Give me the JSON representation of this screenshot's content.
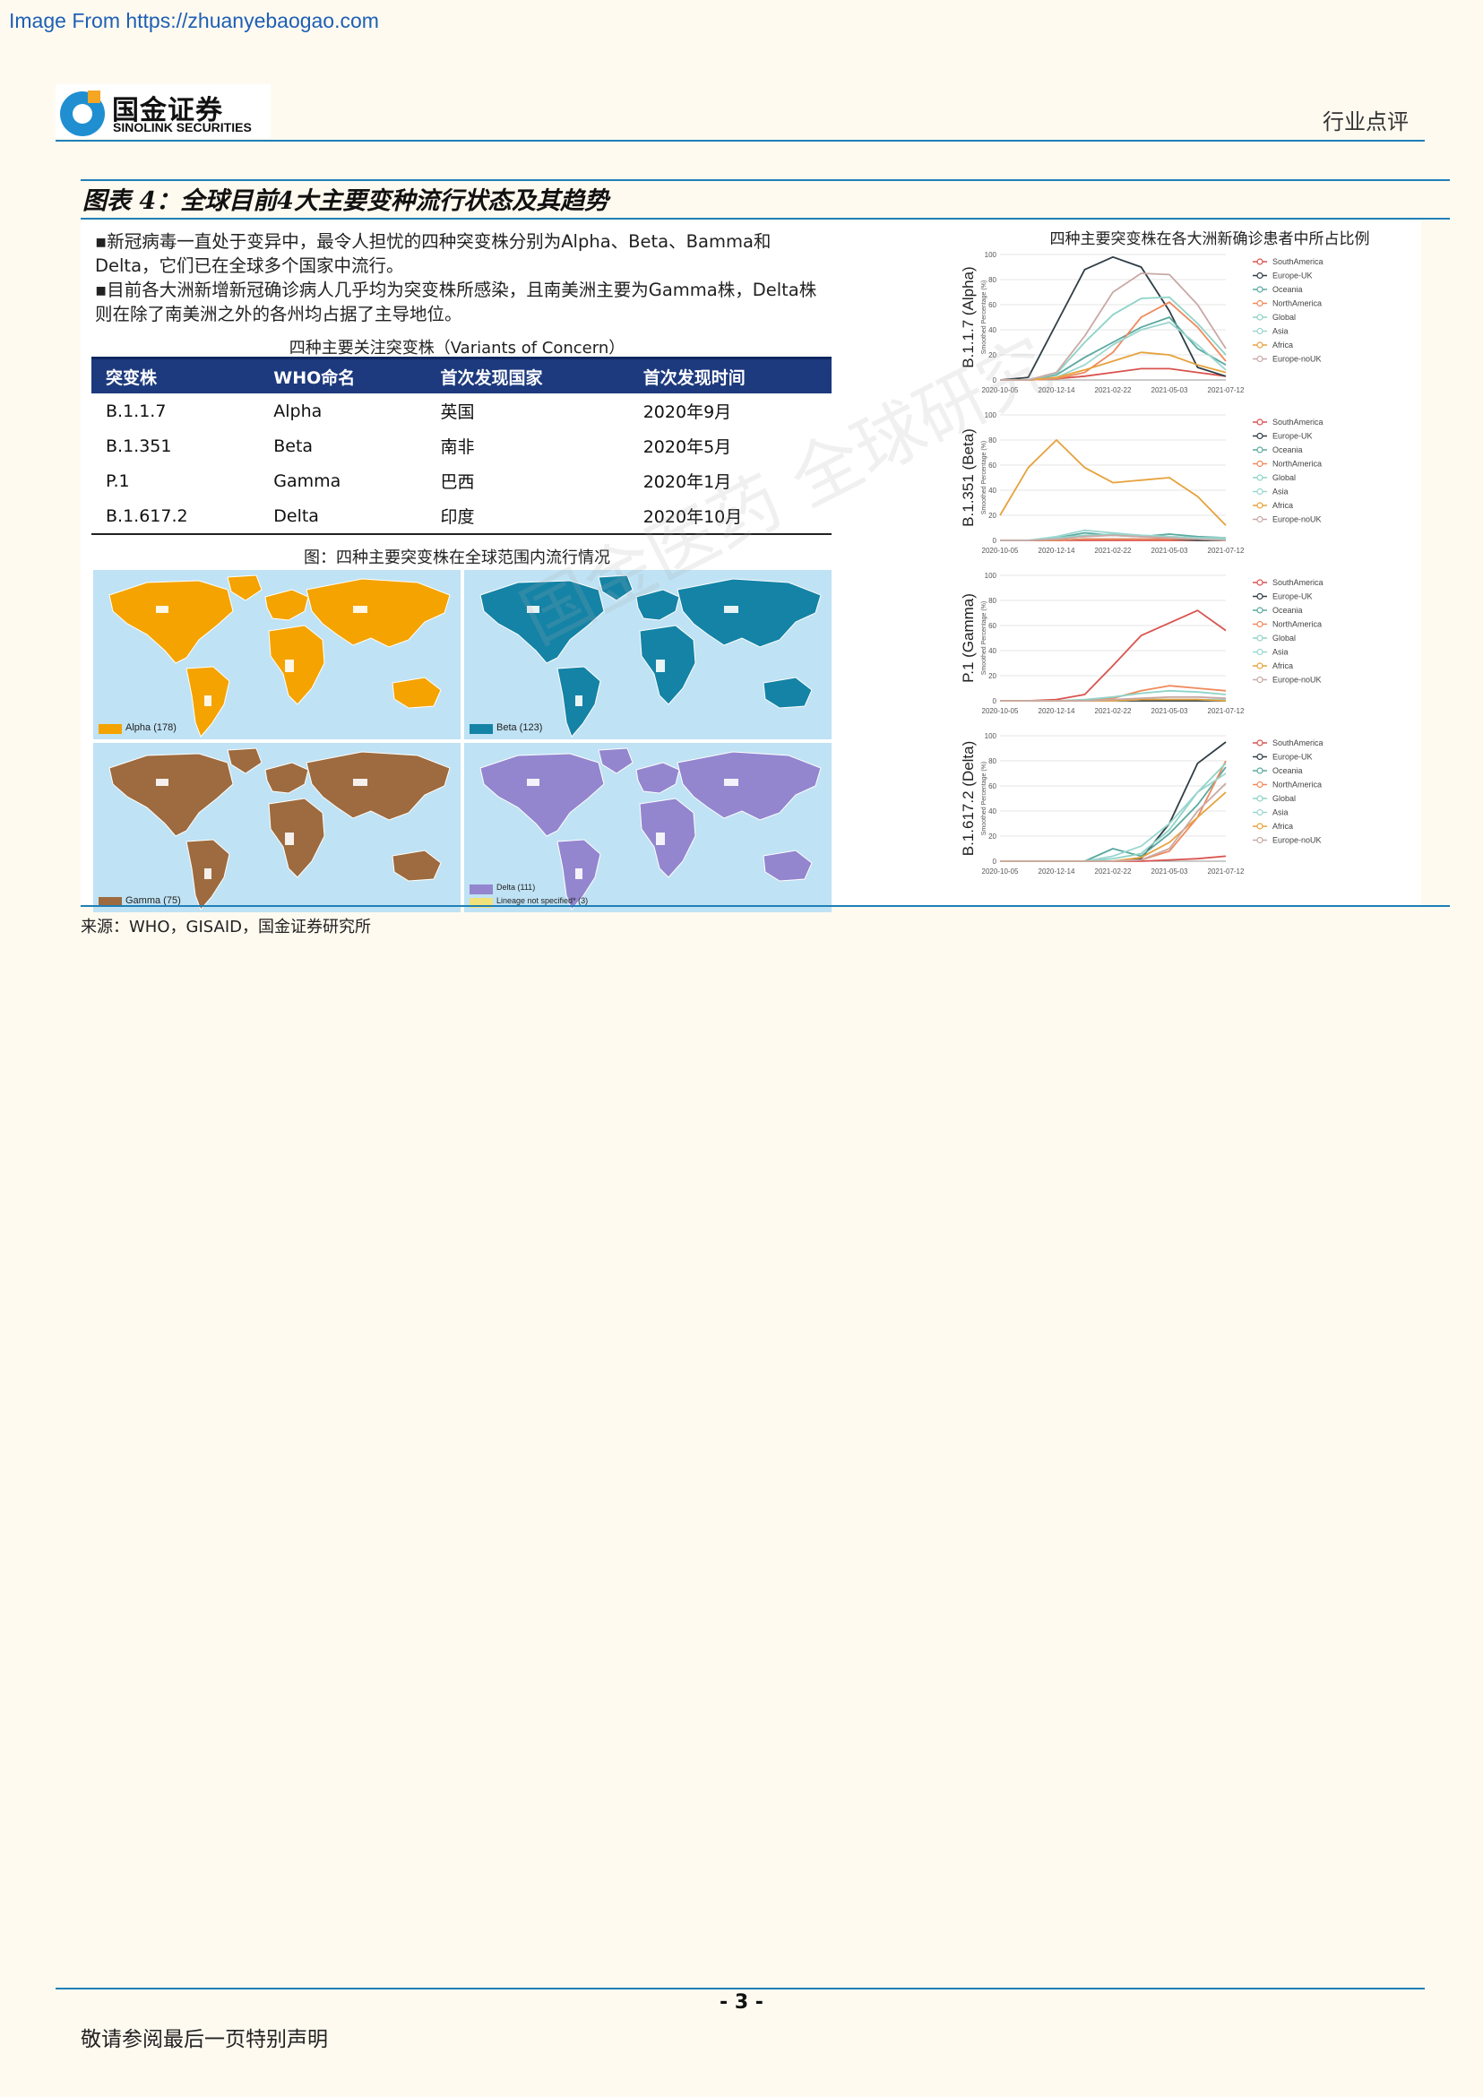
{
  "source_url": "Image From https://zhuanyebaogao.com",
  "logo": {
    "cn": "国金证券",
    "en": "SINOLINK SECURITIES"
  },
  "header_tag": "行业点评",
  "figure_title": "图表 4：全球目前4大主要变种流行状态及其趋势",
  "description": [
    "▪新冠病毒一直处于变异中，最令人担忧的四种突变株分别为Alpha、Beta、Bamma和Delta，它们已在全球多个国家中流行。",
    "▪目前各大洲新增新冠确诊病人几乎均为突变株所感染，且南美洲主要为Gamma株，Delta株则在除了南美洲之外的各州均占据了主导地位。"
  ],
  "table": {
    "caption": "四种主要关注突变株（Variants of Concern）",
    "headers": [
      "突变株",
      "WHO命名",
      "首次发现国家",
      "首次发现时间"
    ],
    "rows": [
      [
        "B.1.1.7",
        "Alpha",
        "英国",
        "2020年9月"
      ],
      [
        "B.1.351",
        "Beta",
        "南非",
        "2020年5月"
      ],
      [
        "P.1",
        "Gamma",
        "巴西",
        "2020年1月"
      ],
      [
        "B.1.617.2",
        "Delta",
        "印度",
        "2020年10月"
      ]
    ]
  },
  "map_caption": "图：四种主要突变株在全球范围内流行情况",
  "maps": [
    {
      "legend": "Alpha (178)",
      "land": "#f4a300",
      "other": "#ffffff"
    },
    {
      "legend": "Beta (123)",
      "land": "#1483a6",
      "other": "#ffffff"
    },
    {
      "legend": "Gamma (75)",
      "land": "#9d6b3f",
      "other": "#ffffff"
    },
    {
      "legend": "Delta (111)",
      "legend2": "Lineage not specified* (3)",
      "land": "#9386cf",
      "other": "#ffffff"
    }
  ],
  "charts_title": "四种主要突变株在各大洲新确诊患者中所占比例",
  "chart_common": {
    "ylabel_small": "Smoothed Percentage (%)",
    "x_ticks": [
      "2020-10-05",
      "2020-12-14",
      "2021-02-22",
      "2021-05-03",
      "2021-07-12"
    ],
    "y_ticks": [
      "0",
      "20",
      "40",
      "60",
      "80",
      "100"
    ],
    "legend": [
      "SouthAmerica",
      "Europe-UK",
      "Oceania",
      "NorthAmerica",
      "Global",
      "Asia",
      "Africa",
      "Europe-noUK"
    ],
    "colors": {
      "SouthAmerica": "#d9534f",
      "Europe-UK": "#2f3e46",
      "Oceania": "#5aa9a0",
      "NorthAmerica": "#f08a5d",
      "Global": "#8fd3c7",
      "Asia": "#9bd6d0",
      "Africa": "#e6a23c",
      "Europe-noUK": "#c9a9a6"
    }
  },
  "chart_data": [
    {
      "type": "line",
      "ylabel": "B.1.1.7 (Alpha)",
      "x": [
        "2020-10-05",
        "2020-11-09",
        "2020-12-14",
        "2021-01-18",
        "2021-02-22",
        "2021-03-29",
        "2021-05-03",
        "2021-06-07",
        "2021-07-12"
      ],
      "ylim": [
        0,
        100
      ],
      "series": [
        {
          "name": "SouthAmerica",
          "values": [
            0,
            0,
            1,
            3,
            6,
            9,
            9,
            6,
            3
          ]
        },
        {
          "name": "Europe-UK",
          "values": [
            0,
            2,
            45,
            88,
            98,
            90,
            55,
            10,
            3
          ]
        },
        {
          "name": "Oceania",
          "values": [
            0,
            0,
            4,
            18,
            30,
            42,
            50,
            25,
            12
          ]
        },
        {
          "name": "NorthAmerica",
          "values": [
            0,
            0,
            1,
            6,
            22,
            50,
            62,
            42,
            15
          ]
        },
        {
          "name": "Global",
          "values": [
            0,
            0,
            5,
            30,
            52,
            65,
            66,
            45,
            20
          ]
        },
        {
          "name": "Asia",
          "values": [
            0,
            0,
            2,
            12,
            28,
            40,
            46,
            28,
            8
          ]
        },
        {
          "name": "Africa",
          "values": [
            0,
            0,
            2,
            8,
            15,
            22,
            20,
            12,
            6
          ]
        },
        {
          "name": "Europe-noUK",
          "values": [
            0,
            0,
            6,
            35,
            70,
            85,
            84,
            60,
            25
          ]
        }
      ]
    },
    {
      "type": "line",
      "ylabel": "B.1.351 (Beta)",
      "x": [
        "2020-10-05",
        "2020-11-09",
        "2020-12-14",
        "2021-01-18",
        "2021-02-22",
        "2021-03-29",
        "2021-05-03",
        "2021-06-07",
        "2021-07-12"
      ],
      "ylim": [
        0,
        100
      ],
      "series": [
        {
          "name": "SouthAmerica",
          "values": [
            0,
            0,
            0,
            0,
            0,
            0,
            0,
            0,
            0
          ]
        },
        {
          "name": "Europe-UK",
          "values": [
            0,
            0,
            0,
            1,
            1,
            1,
            1,
            0,
            0
          ]
        },
        {
          "name": "Oceania",
          "values": [
            0,
            0,
            2,
            6,
            4,
            3,
            5,
            3,
            2
          ]
        },
        {
          "name": "NorthAmerica",
          "values": [
            0,
            0,
            0,
            1,
            1,
            1,
            1,
            1,
            0
          ]
        },
        {
          "name": "Global",
          "values": [
            0,
            0,
            2,
            4,
            5,
            4,
            3,
            2,
            1
          ]
        },
        {
          "name": "Asia",
          "values": [
            0,
            0,
            3,
            8,
            6,
            4,
            3,
            2,
            2
          ]
        },
        {
          "name": "Africa",
          "values": [
            20,
            58,
            80,
            58,
            46,
            48,
            50,
            35,
            12
          ]
        },
        {
          "name": "Europe-noUK",
          "values": [
            0,
            0,
            1,
            3,
            4,
            3,
            2,
            1,
            0
          ]
        }
      ]
    },
    {
      "type": "line",
      "ylabel": "P.1 (Gamma)",
      "x": [
        "2020-10-05",
        "2020-11-09",
        "2020-12-14",
        "2021-01-18",
        "2021-02-22",
        "2021-03-29",
        "2021-05-03",
        "2021-06-07",
        "2021-07-12"
      ],
      "ylim": [
        0,
        100
      ],
      "series": [
        {
          "name": "SouthAmerica",
          "values": [
            0,
            0,
            1,
            5,
            28,
            52,
            62,
            72,
            56
          ]
        },
        {
          "name": "Europe-UK",
          "values": [
            0,
            0,
            0,
            0,
            0,
            0,
            0,
            0,
            0
          ]
        },
        {
          "name": "Oceania",
          "values": [
            0,
            0,
            0,
            0,
            0,
            1,
            1,
            1,
            0
          ]
        },
        {
          "name": "NorthAmerica",
          "values": [
            0,
            0,
            0,
            0,
            2,
            8,
            12,
            10,
            8
          ]
        },
        {
          "name": "Global",
          "values": [
            0,
            0,
            0,
            1,
            3,
            6,
            8,
            7,
            5
          ]
        },
        {
          "name": "Asia",
          "values": [
            0,
            0,
            0,
            0,
            0,
            1,
            1,
            1,
            1
          ]
        },
        {
          "name": "Africa",
          "values": [
            0,
            0,
            0,
            0,
            0,
            1,
            1,
            1,
            0
          ]
        },
        {
          "name": "Europe-noUK",
          "values": [
            0,
            0,
            0,
            0,
            1,
            2,
            3,
            3,
            2
          ]
        }
      ]
    },
    {
      "type": "line",
      "ylabel": "B.1.617.2 (Delta)",
      "x": [
        "2020-10-05",
        "2020-11-09",
        "2020-12-14",
        "2021-01-18",
        "2021-02-22",
        "2021-03-29",
        "2021-05-03",
        "2021-06-07",
        "2021-07-12"
      ],
      "ylim": [
        0,
        100
      ],
      "series": [
        {
          "name": "SouthAmerica",
          "values": [
            0,
            0,
            0,
            0,
            0,
            0,
            1,
            2,
            4
          ]
        },
        {
          "name": "Europe-UK",
          "values": [
            0,
            0,
            0,
            0,
            0,
            2,
            30,
            78,
            95
          ]
        },
        {
          "name": "Oceania",
          "values": [
            0,
            0,
            0,
            0,
            10,
            4,
            22,
            45,
            75
          ]
        },
        {
          "name": "NorthAmerica",
          "values": [
            0,
            0,
            0,
            0,
            0,
            1,
            8,
            35,
            80
          ]
        },
        {
          "name": "Global",
          "values": [
            0,
            0,
            0,
            0,
            2,
            6,
            25,
            55,
            78
          ]
        },
        {
          "name": "Asia",
          "values": [
            0,
            0,
            0,
            0,
            4,
            12,
            30,
            55,
            70
          ]
        },
        {
          "name": "Africa",
          "values": [
            0,
            0,
            0,
            0,
            0,
            3,
            15,
            35,
            55
          ]
        },
        {
          "name": "Europe-noUK",
          "values": [
            0,
            0,
            0,
            0,
            0,
            1,
            10,
            40,
            62
          ]
        }
      ]
    }
  ],
  "figure_source": "来源：WHO，GISAID，国金证券研究所",
  "page_number": "- 3 -",
  "disclaimer": "敬请参阅最后一页特别声明",
  "watermark": "国金医药 全球研究"
}
